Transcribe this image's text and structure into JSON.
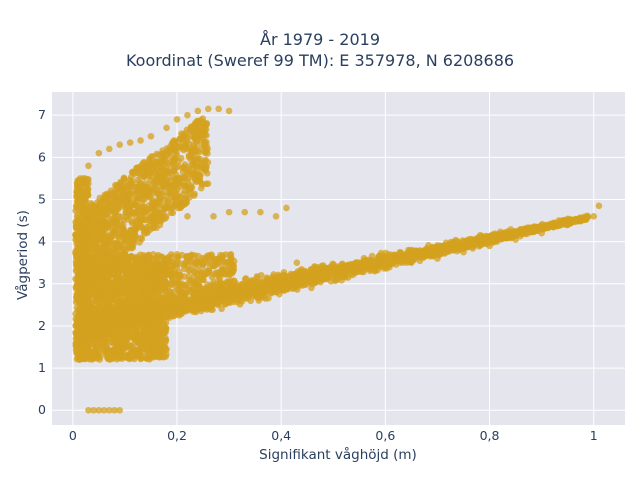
{
  "chart_data": {
    "type": "scatter",
    "title": [
      "År 1979 - 2019",
      "Koordinat (Sweref 99 TM): E 357978, N 6208686"
    ],
    "xlabel": "Signifikant våghöjd (m)",
    "ylabel": "Vågperiod (s)",
    "xlim": [
      -0.04,
      1.06
    ],
    "ylim": [
      -0.35,
      7.55
    ],
    "x_ticks": [
      "0",
      "0,2",
      "0,4",
      "0,6",
      "0,8",
      "1"
    ],
    "x_tick_values": [
      0,
      0.2,
      0.4,
      0.6,
      0.8,
      1.0
    ],
    "y_ticks": [
      "0",
      "1",
      "2",
      "3",
      "4",
      "5",
      "6",
      "7"
    ],
    "y_tick_values": [
      0,
      1,
      2,
      3,
      4,
      5,
      6,
      7
    ],
    "grid": true,
    "marker_color": "#d4a21f",
    "background_color": "#e5e5ee",
    "series": [
      {
        "x": [
          0.02,
          0.04,
          0.06,
          0.08,
          0.1,
          0.12,
          0.15,
          0.2,
          0.25,
          0.3,
          0.35,
          0.4,
          0.45,
          0.5,
          0.55,
          0.6,
          0.65,
          0.7,
          0.75,
          0.8,
          0.85,
          0.9,
          0.95,
          1.0,
          1.01,
          0.01,
          0.02,
          0.03,
          0.05,
          0.07,
          0.09,
          0.11,
          0.13,
          0.15,
          0.18,
          0.2,
          0.22,
          0.24,
          0.26,
          0.28,
          0.3,
          0.22,
          0.27,
          0.3,
          0.33,
          0.36,
          0.39,
          0.41,
          0.43,
          0.02,
          0.04,
          0.06,
          0.08,
          0.1,
          0.12,
          0.14,
          0.16,
          0.2,
          0.03,
          0.04,
          0.05,
          0.06,
          0.07,
          0.08,
          0.09
        ],
        "y": [
          2.4,
          2.3,
          2.2,
          2.1,
          2.2,
          2.3,
          2.4,
          2.5,
          2.65,
          2.8,
          2.9,
          3.0,
          3.1,
          3.2,
          3.3,
          3.4,
          3.5,
          3.6,
          3.75,
          3.9,
          4.05,
          4.2,
          4.4,
          4.6,
          4.85,
          5.0,
          5.5,
          5.8,
          6.1,
          6.2,
          6.3,
          6.35,
          6.4,
          6.5,
          6.7,
          6.9,
          7.0,
          7.1,
          7.15,
          7.15,
          7.1,
          4.6,
          4.6,
          4.7,
          4.7,
          4.7,
          4.6,
          4.8,
          3.5,
          3.7,
          3.7,
          3.6,
          3.7,
          3.7,
          3.6,
          3.65,
          3.6,
          3.7,
          0.0,
          0.0,
          0.0,
          0.0,
          0.0,
          0.0,
          0.0
        ]
      }
    ]
  }
}
